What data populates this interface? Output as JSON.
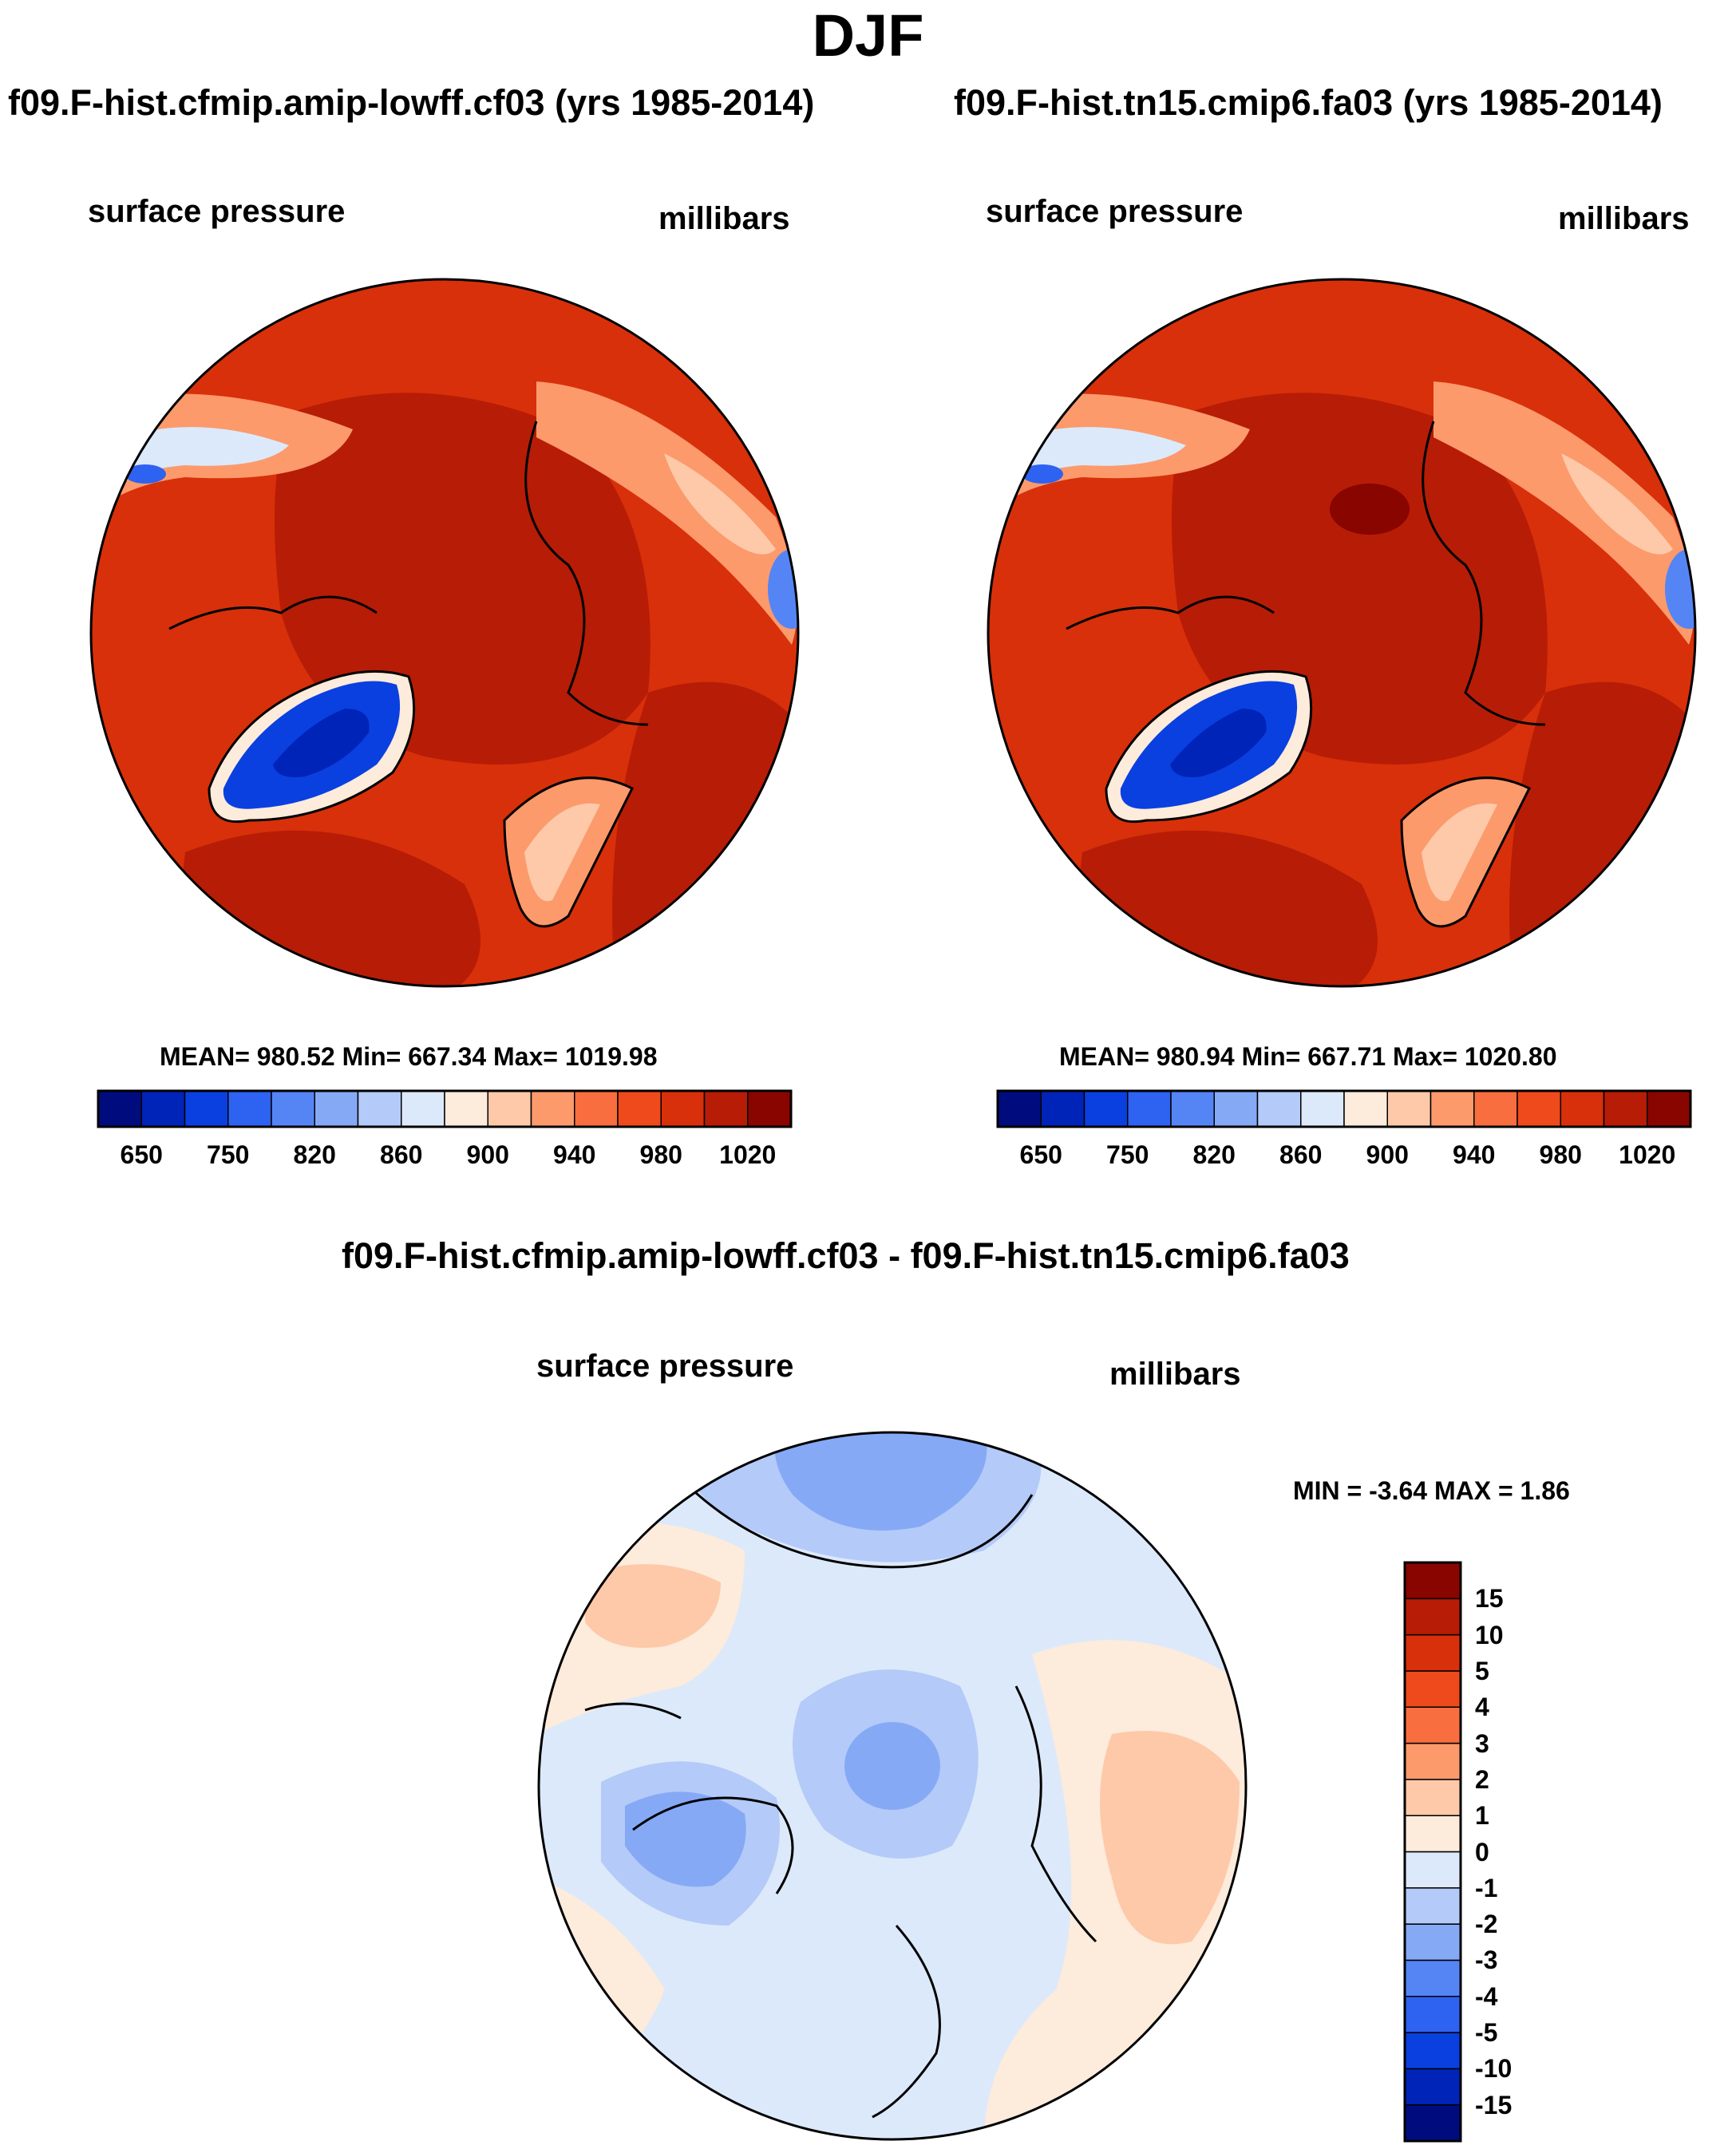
{
  "figure": {
    "title": "DJF"
  },
  "panels": [
    {
      "title": "f09.F-hist.cfmip.amip-lowff.cf03 (yrs 1985-2014)",
      "variable": "surface pressure",
      "units": "millibars",
      "stats": "MEAN= 980.52  Min= 667.34  Max= 1019.98"
    },
    {
      "title": "f09.F-hist.tn15.cmip6.fa03 (yrs 1985-2014)",
      "variable": "surface pressure",
      "units": "millibars",
      "stats": "MEAN= 980.94  Min= 667.71  Max= 1020.80"
    }
  ],
  "difference_panel": {
    "title": "f09.F-hist.cfmip.amip-lowff.cf03 - f09.F-hist.tn15.cmip6.fa03",
    "variable": "surface pressure",
    "units": "millibars",
    "stats": "MIN =  -3.64 MAX =   1.86"
  },
  "colorbars": {
    "absolute": {
      "colors": [
        "#000c7d",
        "#0024b7",
        "#0a40e0",
        "#2e62f0",
        "#5585f5",
        "#86a9f6",
        "#b4caf8",
        "#dce9fa",
        "#fdebdc",
        "#fdc9a9",
        "#fc9a6c",
        "#f86e3f",
        "#ef4a1b",
        "#d8300a",
        "#b71c06",
        "#880500"
      ],
      "tick_labels": [
        "650",
        "750",
        "820",
        "860",
        "900",
        "940",
        "980",
        "1020"
      ]
    },
    "difference": {
      "colors": [
        "#000c7d",
        "#0024b7",
        "#0a40e0",
        "#2e62f0",
        "#5585f5",
        "#86a9f6",
        "#b4caf8",
        "#dce9fa",
        "#fdebdc",
        "#fdc9a9",
        "#fc9a6c",
        "#f86e3f",
        "#ef4a1b",
        "#d8300a",
        "#b71c06",
        "#880500"
      ],
      "tick_labels": [
        "-15",
        "-10",
        "-5",
        "-4",
        "-3",
        "-2",
        "-1",
        "0",
        "1",
        "2",
        "3",
        "4",
        "5",
        "10",
        "15"
      ]
    }
  },
  "map_colors": {
    "land_high": "#b71c06",
    "ocean_mid": "#d8300a",
    "dark_max": "#880500",
    "greenland_low": "#0a40e0",
    "diff_base": "#dce9fa",
    "diff_neg2": "#b4caf8",
    "diff_neg3": "#86a9f6",
    "diff_pos": "#fdebdc",
    "diff_pos2": "#fdc9a9"
  }
}
